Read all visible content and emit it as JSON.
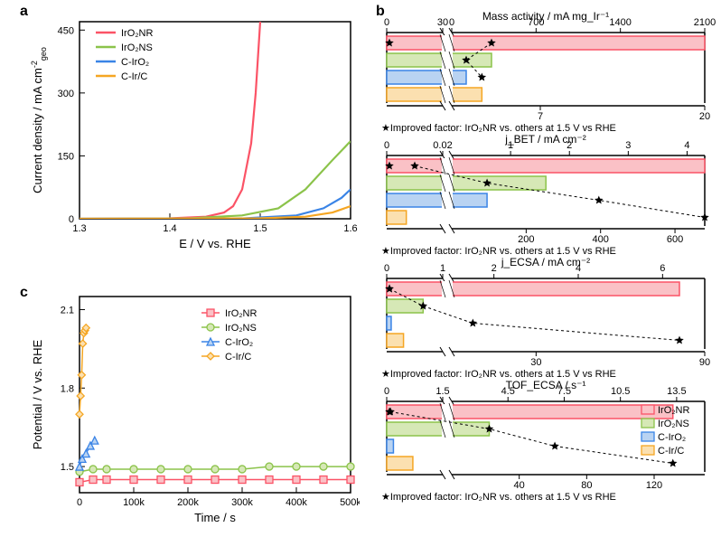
{
  "colors": {
    "IrO2NR": {
      "stroke": "#fb5366",
      "fill": "#fac1c6"
    },
    "IrO2NS": {
      "stroke": "#8bc34a",
      "fill": "#d6e8b6"
    },
    "CIrO2": {
      "stroke": "#3a84e6",
      "fill": "#b9d3f2"
    },
    "CIrC": {
      "stroke": "#f5a623",
      "fill": "#fbe0b0"
    },
    "axis": "#000000",
    "bg": "#ffffff"
  },
  "panelA": {
    "label": "a",
    "x_label": "E / V vs. RHE",
    "y_label": "Current density / mA cm⁻²_geo",
    "x_range": [
      1.3,
      1.6
    ],
    "y_range": [
      0,
      470
    ],
    "x_ticks": [
      1.3,
      1.4,
      1.5,
      1.6
    ],
    "y_ticks": [
      0,
      150,
      300,
      450
    ],
    "legend": [
      "IrO₂NR",
      "IrO₂NS",
      "C-IrO₂",
      "C-Ir/C"
    ],
    "series": {
      "IrO2NR": [
        [
          1.3,
          0
        ],
        [
          1.4,
          1
        ],
        [
          1.44,
          5
        ],
        [
          1.46,
          15
        ],
        [
          1.47,
          30
        ],
        [
          1.48,
          70
        ],
        [
          1.49,
          180
        ],
        [
          1.495,
          300
        ],
        [
          1.5,
          470
        ]
      ],
      "IrO2NS": [
        [
          1.3,
          0
        ],
        [
          1.42,
          1
        ],
        [
          1.48,
          8
        ],
        [
          1.52,
          25
        ],
        [
          1.55,
          70
        ],
        [
          1.58,
          140
        ],
        [
          1.6,
          185
        ]
      ],
      "CIrO2": [
        [
          1.3,
          0
        ],
        [
          1.48,
          1
        ],
        [
          1.54,
          8
        ],
        [
          1.57,
          25
        ],
        [
          1.59,
          50
        ],
        [
          1.6,
          70
        ]
      ],
      "CIrC": [
        [
          1.3,
          0
        ],
        [
          1.5,
          1
        ],
        [
          1.55,
          5
        ],
        [
          1.58,
          15
        ],
        [
          1.6,
          30
        ]
      ]
    }
  },
  "panelC": {
    "label": "c",
    "x_label": "Time / s",
    "y_label": "Potential / V vs. RHE",
    "x_range": [
      0,
      500000
    ],
    "y_range": [
      1.4,
      2.15
    ],
    "x_ticks": [
      0,
      100000,
      200000,
      300000,
      400000,
      500000
    ],
    "x_tick_labels": [
      "0",
      "100k",
      "200k",
      "300k",
      "400k",
      "500k"
    ],
    "y_ticks": [
      1.5,
      1.8,
      2.1
    ],
    "legend": [
      "IrO₂NR",
      "IrO₂NS",
      "C-IrO₂",
      "C-Ir/C"
    ],
    "markers": {
      "IrO2NR": "square",
      "IrO2NS": "circle",
      "CIrO2": "triangle",
      "CIrC": "diamond"
    },
    "series": {
      "IrO2NR": [
        [
          0,
          1.44
        ],
        [
          25000,
          1.45
        ],
        [
          50000,
          1.45
        ],
        [
          100000,
          1.45
        ],
        [
          150000,
          1.45
        ],
        [
          200000,
          1.45
        ],
        [
          250000,
          1.45
        ],
        [
          300000,
          1.45
        ],
        [
          350000,
          1.45
        ],
        [
          400000,
          1.45
        ],
        [
          450000,
          1.45
        ],
        [
          500000,
          1.45
        ]
      ],
      "IrO2NS": [
        [
          0,
          1.48
        ],
        [
          25000,
          1.49
        ],
        [
          50000,
          1.49
        ],
        [
          100000,
          1.49
        ],
        [
          150000,
          1.49
        ],
        [
          200000,
          1.49
        ],
        [
          250000,
          1.49
        ],
        [
          300000,
          1.49
        ],
        [
          350000,
          1.5
        ],
        [
          400000,
          1.5
        ],
        [
          450000,
          1.5
        ],
        [
          500000,
          1.5
        ]
      ],
      "CIrO2": [
        [
          0,
          1.5
        ],
        [
          5000,
          1.53
        ],
        [
          12000,
          1.55
        ],
        [
          20000,
          1.58
        ],
        [
          28000,
          1.6
        ]
      ],
      "CIrC": [
        [
          0,
          1.7
        ],
        [
          2000,
          1.77
        ],
        [
          4000,
          1.85
        ],
        [
          6000,
          1.97
        ],
        [
          8000,
          2.01
        ],
        [
          10000,
          2.02
        ],
        [
          12000,
          2.03
        ]
      ]
    }
  },
  "panelB": {
    "label": "b",
    "caption_tpl": "★Improved factor: IrO₂NR vs. others at 1.5 V vs RHE",
    "charts": [
      {
        "title": "Mass activity / mA mg_Ir⁻¹",
        "seg1": {
          "range": [
            0,
            30
          ],
          "ticks": [
            0,
            30
          ]
        },
        "seg2": {
          "range": [
            0,
            2100
          ],
          "ticks": [
            0,
            700,
            1400,
            2100
          ]
        },
        "bars": [
          {
            "key": "IrO2NR",
            "seg": 2,
            "value": 2100
          },
          {
            "key": "IrO2NS",
            "seg": 2,
            "value": 330
          },
          {
            "key": "CIrO2",
            "seg": 2,
            "value": 120
          },
          {
            "key": "CIrC",
            "seg": 2,
            "value": 250
          }
        ],
        "stars": {
          "seg1": [
            0
          ],
          "seg2": []
        },
        "improvement": {
          "range": [
            0,
            20
          ],
          "ticks": [
            7,
            20
          ],
          "points": [
            [
              330,
              7
            ],
            [
              120,
              20
            ],
            [
              250,
              9
            ]
          ]
        }
      },
      {
        "title": "j_BET / mA cm⁻²",
        "seg1": {
          "range": [
            0,
            0.02
          ],
          "ticks": [
            0.0,
            0.02
          ]
        },
        "seg2": {
          "range": [
            0,
            4.3
          ],
          "ticks": [
            1,
            2,
            3,
            4
          ]
        },
        "bars": [
          {
            "key": "IrO2NR",
            "seg": 2,
            "value": 4.3
          },
          {
            "key": "IrO2NS",
            "seg": 2,
            "value": 1.6
          },
          {
            "key": "CIrO2",
            "seg": 2,
            "value": 0.6
          },
          {
            "key": "CIrC",
            "seg": 1,
            "value": 0.007
          }
        ],
        "improvement": {
          "range": [
            0,
            680
          ],
          "ticks": [
            200,
            400,
            600
          ],
          "points": [
            [
              0.01,
              3
            ],
            [
              0.6,
              8
            ],
            [
              2.5,
              410
            ],
            [
              4.3,
              670
            ]
          ]
        }
      },
      {
        "title": "j_ECSA / mA cm⁻²",
        "seg1": {
          "range": [
            0,
            1
          ],
          "ticks": [
            0,
            1
          ]
        },
        "seg2": {
          "range": [
            1,
            7
          ],
          "ticks": [
            2,
            4,
            6
          ]
        },
        "bars": [
          {
            "key": "IrO2NR",
            "seg": 2,
            "value": 6.4
          },
          {
            "key": "IrO2NS",
            "seg": 1,
            "value": 0.65
          },
          {
            "key": "CIrO2",
            "seg": 1,
            "value": 0.08
          },
          {
            "key": "CIrC",
            "seg": 1,
            "value": 0.3
          }
        ],
        "improvement": {
          "range": [
            0,
            90
          ],
          "ticks": [
            30,
            90
          ],
          "points": [
            [
              0.05,
              0
            ],
            [
              0.65,
              10
            ],
            [
              1.5,
              25
            ],
            [
              6.4,
              90
            ]
          ]
        }
      },
      {
        "title": "TOF_ECSA / s⁻¹",
        "seg1": {
          "range": [
            0,
            1.5
          ],
          "ticks": [
            0.0,
            1.5
          ]
        },
        "seg2": {
          "range": [
            1.5,
            15
          ],
          "ticks": [
            4.5,
            7.5,
            10.5,
            13.5
          ]
        },
        "legend_here": true,
        "bars": [
          {
            "key": "IrO2NR",
            "seg": 2,
            "value": 13.3
          },
          {
            "key": "IrO2NS",
            "seg": 2,
            "value": 3.5
          },
          {
            "key": "CIrO2",
            "seg": 1,
            "value": 0.18
          },
          {
            "key": "CIrC",
            "seg": 1,
            "value": 0.7
          }
        ],
        "improvement": {
          "range": [
            0,
            150
          ],
          "ticks": [
            40,
            80,
            120
          ],
          "points": [
            [
              0.1,
              0
            ],
            [
              3.5,
              4
            ],
            [
              7,
              50
            ],
            [
              13.3,
              125
            ]
          ]
        }
      }
    ],
    "legend_labels": {
      "IrO2NR": "IrO₂NR",
      "IrO2NS": "IrO₂NS",
      "CIrO2": "C-IrO₂",
      "CIrC": "C-Ir/C"
    }
  }
}
